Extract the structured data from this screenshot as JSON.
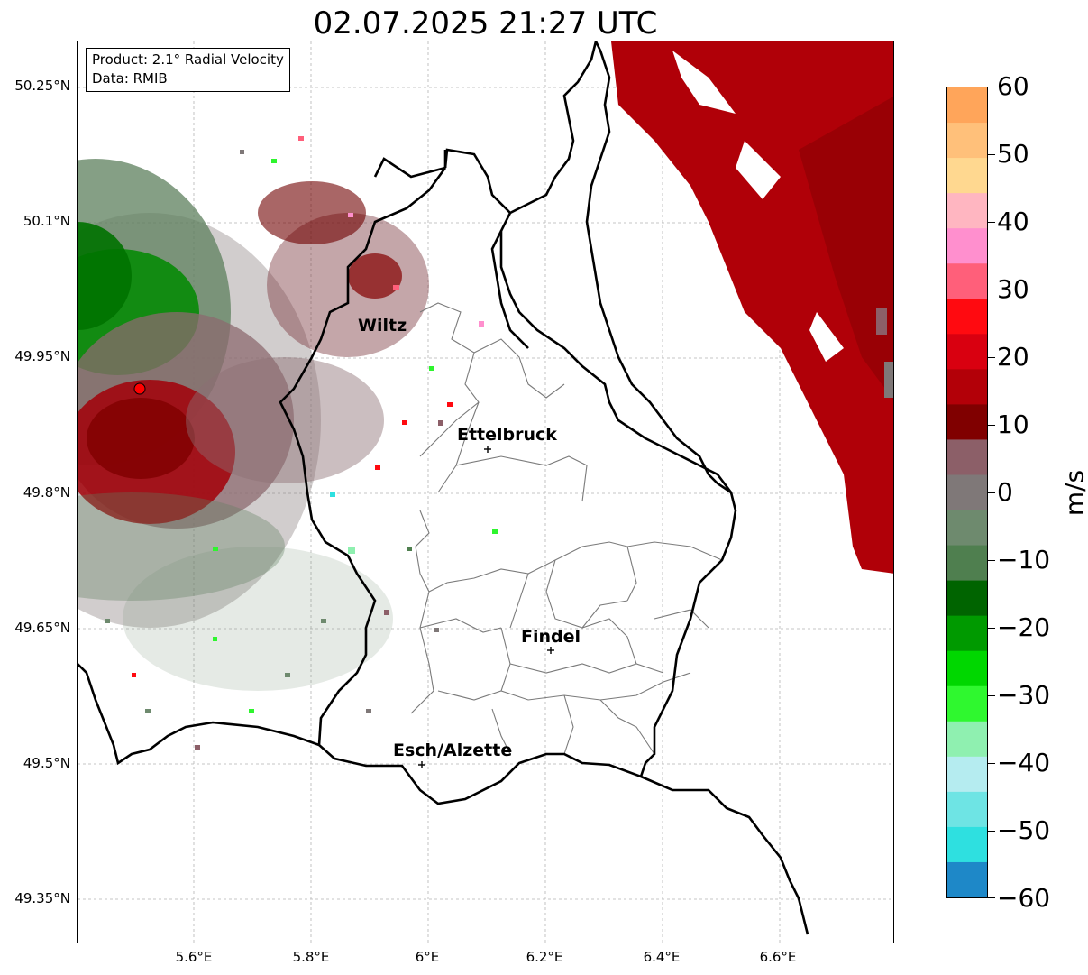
{
  "title": "02.07.2025 21:27 UTC",
  "info_box": {
    "product": "Product: 2.1° Radial Velocity",
    "data": "Data: RMIB"
  },
  "y_axis_ticks": [
    "50.25°N",
    "50.1°N",
    "49.95°N",
    "49.8°N",
    "49.65°N",
    "49.5°N",
    "49.35°N"
  ],
  "x_axis_ticks": [
    "5.6°E",
    "5.8°E",
    "6°E",
    "6.2°E",
    "6.4°E",
    "6.6°E"
  ],
  "colorbar": {
    "unit": "m/s",
    "tick_labels": [
      "60",
      "50",
      "40",
      "30",
      "20",
      "10",
      "0",
      "−10",
      "−20",
      "−30",
      "−40",
      "−50",
      "−60"
    ],
    "range": [
      -60,
      60
    ],
    "colors_top_to_bottom": [
      "#ffa55a",
      "#ffc07a",
      "#ffd890",
      "#ffb6c1",
      "#ff8fce",
      "#ff5f7a",
      "#ff0a10",
      "#d90010",
      "#b30008",
      "#800000",
      "#8c5f68",
      "#7f7878",
      "#6e8a6e",
      "#4f7f4f",
      "#006400",
      "#009a00",
      "#00d700",
      "#2ff82f",
      "#8ff0b0",
      "#b5ecf0",
      "#6ee4e4",
      "#2ee0e0",
      "#1e88c8"
    ]
  },
  "cities": {
    "wiltz": "Wiltz",
    "ettelbruck": "Ettelbruck",
    "findel": "Findel",
    "esch": "Esch/Alzette"
  },
  "radar_site_color": "#ff0000"
}
